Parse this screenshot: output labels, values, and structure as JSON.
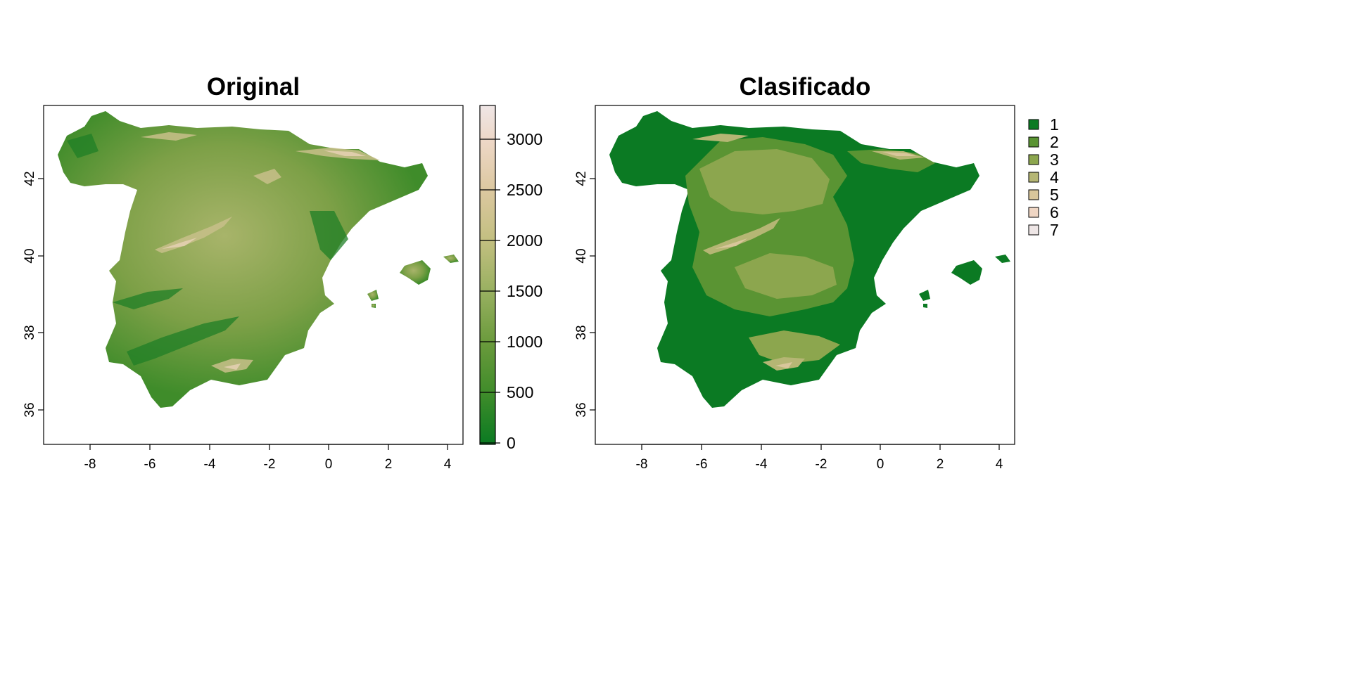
{
  "panels": [
    {
      "title": "Original",
      "kind": "continuous",
      "x_ticks": [
        "-8",
        "-6",
        "-4",
        "-2",
        "0",
        "2",
        "4"
      ],
      "y_ticks": [
        "36",
        "38",
        "40",
        "42"
      ],
      "colorbar_ticks": [
        "0",
        "500",
        "1000",
        "1500",
        "2000",
        "2500",
        "3000"
      ]
    },
    {
      "title": "Clasificado",
      "kind": "classes",
      "x_ticks": [
        "-8",
        "-6",
        "-4",
        "-2",
        "0",
        "2",
        "4"
      ],
      "y_ticks": [
        "36",
        "38",
        "40",
        "42"
      ],
      "legend": [
        "1",
        "2",
        "3",
        "4",
        "5",
        "6",
        "7"
      ]
    }
  ],
  "colors": {
    "terrain_ramp": [
      "#0a7a22",
      "#3f8c2a",
      "#6a9a3c",
      "#98b060",
      "#c2bf80",
      "#dcc8a0",
      "#eed8c8",
      "#efe6e6"
    ],
    "classes": [
      "#0b7a23",
      "#5a9433",
      "#8ca64e",
      "#b5b674",
      "#d9c69b",
      "#efd6c4",
      "#eee6e6"
    ]
  }
}
